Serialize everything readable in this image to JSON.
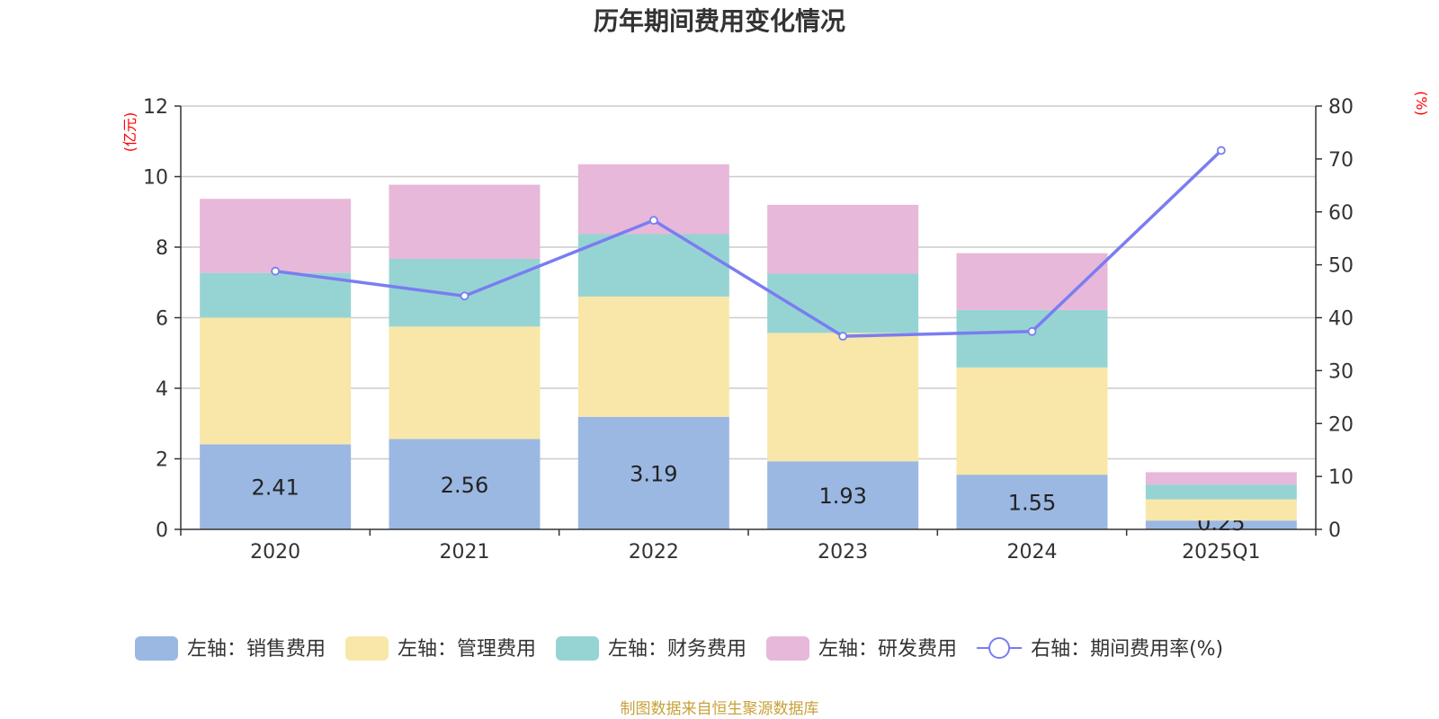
{
  "chart_data": {
    "type": "bar",
    "stacked": true,
    "title": "历年期间费用变化情况",
    "categories": [
      "2020",
      "2021",
      "2022",
      "2023",
      "2024",
      "2025Q1"
    ],
    "left_axis": {
      "unit": "(亿元)",
      "min": 0,
      "max": 12,
      "ticks": [
        "0",
        "2",
        "4",
        "6",
        "8",
        "10",
        "12"
      ]
    },
    "right_axis": {
      "unit": "(%)",
      "min": 0,
      "max": 80,
      "ticks": [
        "0",
        "10",
        "20",
        "30",
        "40",
        "50",
        "60",
        "70",
        "80"
      ]
    },
    "series": [
      {
        "name": "左轴：销售费用",
        "color": "#9bb8e2",
        "axis": "left",
        "values": [
          2.41,
          2.56,
          3.19,
          1.93,
          1.55,
          0.25
        ],
        "labels": [
          "2.41",
          "2.56",
          "3.19",
          "1.93",
          "1.55",
          "0.25"
        ]
      },
      {
        "name": "左轴：管理费用",
        "color": "#f8e7a9",
        "axis": "left",
        "values": [
          3.59,
          3.19,
          3.41,
          3.64,
          3.04,
          0.6
        ]
      },
      {
        "name": "左轴：财务费用",
        "color": "#96d4d4",
        "axis": "left",
        "values": [
          1.27,
          1.92,
          1.77,
          1.68,
          1.63,
          0.42
        ]
      },
      {
        "name": "左轴：研发费用",
        "color": "#e7b8d9",
        "axis": "left",
        "values": [
          2.1,
          2.1,
          1.98,
          1.95,
          1.61,
          0.35
        ]
      },
      {
        "name": "右轴：期间费用率(%)",
        "type": "line",
        "color": "#7a7df0",
        "axis": "right",
        "values": [
          48.8,
          44.1,
          58.4,
          36.5,
          37.4,
          71.6
        ]
      }
    ],
    "grid": true,
    "legend_position": "bottom"
  },
  "source_text": "制图数据来自恒生聚源数据库",
  "colors": {
    "axis_unit": "#ff0000",
    "source": "#c8a13a",
    "grid": "#cccccc",
    "axis": "#333333"
  }
}
